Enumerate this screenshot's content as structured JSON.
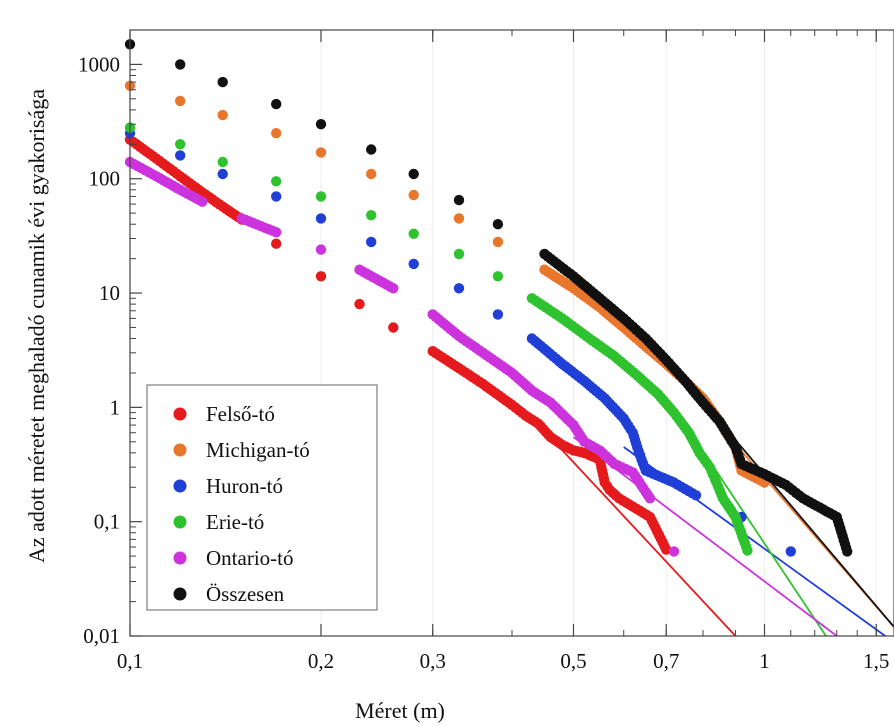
{
  "chart_data": {
    "type": "scatter",
    "xlabel": "Méret (m)",
    "ylabel": "Az adott méretet meghaladó cunamik évi gyakorisága",
    "x_scale": "log",
    "y_scale": "log",
    "xlim": [
      0.1,
      1.6
    ],
    "ylim": [
      0.01,
      2000
    ],
    "x_ticks": [
      {
        "value": 0.1,
        "label": "0,1"
      },
      {
        "value": 0.2,
        "label": "0,2"
      },
      {
        "value": 0.3,
        "label": "0,3"
      },
      {
        "value": 0.5,
        "label": "0,5"
      },
      {
        "value": 0.7,
        "label": "0,7"
      },
      {
        "value": 1,
        "label": "1"
      },
      {
        "value": 1.5,
        "label": "1,5"
      }
    ],
    "y_ticks": [
      {
        "value": 0.01,
        "label": "0,01"
      },
      {
        "value": 0.1,
        "label": "0,1"
      },
      {
        "value": 1,
        "label": "1"
      },
      {
        "value": 10,
        "label": "10"
      },
      {
        "value": 100,
        "label": "100"
      },
      {
        "value": 1000,
        "label": "1000"
      }
    ],
    "legend_position": "bottom-left",
    "series": [
      {
        "name": "Felső-tó",
        "color": "#e41a1c",
        "points": [
          [
            0.1,
            220
          ],
          [
            0.11,
            150
          ],
          [
            0.12,
            105
          ],
          [
            0.13,
            76
          ],
          [
            0.14,
            57
          ],
          [
            0.15,
            44
          ],
          [
            0.17,
            27
          ],
          [
            0.2,
            14
          ],
          [
            0.23,
            8
          ],
          [
            0.26,
            5
          ],
          [
            0.3,
            3.1
          ],
          [
            0.33,
            2.2
          ],
          [
            0.36,
            1.6
          ],
          [
            0.4,
            1.05
          ],
          [
            0.42,
            0.85
          ],
          [
            0.44,
            0.72
          ],
          [
            0.46,
            0.55
          ],
          [
            0.48,
            0.47
          ],
          [
            0.5,
            0.42
          ],
          [
            0.52,
            0.4
          ],
          [
            0.55,
            0.35
          ],
          [
            0.56,
            0.22
          ],
          [
            0.57,
            0.19
          ],
          [
            0.59,
            0.16
          ],
          [
            0.66,
            0.11
          ],
          [
            0.7,
            0.057
          ]
        ],
        "fit_line": [
          [
            0.45,
            0.62
          ],
          [
            0.9,
            0.01
          ]
        ]
      },
      {
        "name": "Michigan-tó",
        "color": "#e8762c",
        "points": [
          [
            0.1,
            650
          ],
          [
            0.12,
            480
          ],
          [
            0.14,
            360
          ],
          [
            0.17,
            250
          ],
          [
            0.2,
            170
          ],
          [
            0.24,
            110
          ],
          [
            0.28,
            72
          ],
          [
            0.33,
            45
          ],
          [
            0.38,
            28
          ],
          [
            0.45,
            16
          ],
          [
            0.5,
            11
          ],
          [
            0.55,
            7.5
          ],
          [
            0.6,
            5
          ],
          [
            0.65,
            3.4
          ],
          [
            0.7,
            2.4
          ],
          [
            0.75,
            1.7
          ],
          [
            0.8,
            1.2
          ],
          [
            0.85,
            0.75
          ],
          [
            0.88,
            0.55
          ],
          [
            0.9,
            0.45
          ],
          [
            0.92,
            0.28
          ],
          [
            1.0,
            0.22
          ]
        ],
        "fit_line": [
          [
            0.88,
            0.55
          ],
          [
            1.6,
            0.012
          ]
        ]
      },
      {
        "name": "Huron-tó",
        "color": "#1f3fd6",
        "points": [
          [
            0.1,
            250
          ],
          [
            0.12,
            160
          ],
          [
            0.14,
            110
          ],
          [
            0.17,
            70
          ],
          [
            0.2,
            45
          ],
          [
            0.24,
            28
          ],
          [
            0.28,
            18
          ],
          [
            0.33,
            11
          ],
          [
            0.38,
            6.5
          ],
          [
            0.43,
            4
          ],
          [
            0.48,
            2.4
          ],
          [
            0.52,
            1.7
          ],
          [
            0.56,
            1.2
          ],
          [
            0.6,
            0.8
          ],
          [
            0.62,
            0.6
          ],
          [
            0.63,
            0.45
          ],
          [
            0.64,
            0.35
          ],
          [
            0.65,
            0.28
          ],
          [
            0.72,
            0.22
          ],
          [
            0.78,
            0.17
          ],
          [
            0.92,
            0.11
          ],
          [
            1.1,
            0.055
          ]
        ],
        "fit_line": [
          [
            0.6,
            0.45
          ],
          [
            1.55,
            0.01
          ]
        ]
      },
      {
        "name": "Erie-tó",
        "color": "#2fc22f",
        "points": [
          [
            0.1,
            280
          ],
          [
            0.12,
            200
          ],
          [
            0.14,
            140
          ],
          [
            0.17,
            95
          ],
          [
            0.2,
            70
          ],
          [
            0.24,
            48
          ],
          [
            0.28,
            33
          ],
          [
            0.33,
            22
          ],
          [
            0.38,
            14
          ],
          [
            0.43,
            9
          ],
          [
            0.48,
            6
          ],
          [
            0.53,
            4
          ],
          [
            0.58,
            2.8
          ],
          [
            0.63,
            1.9
          ],
          [
            0.68,
            1.3
          ],
          [
            0.72,
            0.9
          ],
          [
            0.76,
            0.6
          ],
          [
            0.79,
            0.4
          ],
          [
            0.82,
            0.3
          ],
          [
            0.84,
            0.22
          ],
          [
            0.86,
            0.16
          ],
          [
            0.9,
            0.11
          ],
          [
            0.94,
            0.056
          ]
        ],
        "fit_line": [
          [
            0.72,
            1.0
          ],
          [
            1.25,
            0.01
          ]
        ]
      },
      {
        "name": "Ontario-tó",
        "color": "#cc33dd",
        "points": [
          [
            0.1,
            140
          ],
          [
            0.11,
            105
          ],
          [
            0.12,
            80
          ],
          [
            0.13,
            63
          ],
          [
            0.15,
            45
          ],
          [
            0.17,
            34
          ],
          [
            0.2,
            24
          ],
          [
            0.23,
            16
          ],
          [
            0.26,
            11
          ],
          [
            0.3,
            6.5
          ],
          [
            0.33,
            4.2
          ],
          [
            0.36,
            3
          ],
          [
            0.4,
            2
          ],
          [
            0.43,
            1.4
          ],
          [
            0.46,
            1.1
          ],
          [
            0.5,
            0.7
          ],
          [
            0.52,
            0.5
          ],
          [
            0.55,
            0.42
          ],
          [
            0.58,
            0.32
          ],
          [
            0.62,
            0.27
          ],
          [
            0.66,
            0.16
          ],
          [
            0.72,
            0.055
          ]
        ],
        "fit_line": [
          [
            0.5,
            0.55
          ],
          [
            1.3,
            0.01
          ]
        ]
      },
      {
        "name": "Összesen",
        "color": "#111111",
        "points": [
          [
            0.1,
            1500
          ],
          [
            0.12,
            1000
          ],
          [
            0.14,
            700
          ],
          [
            0.17,
            450
          ],
          [
            0.2,
            300
          ],
          [
            0.24,
            180
          ],
          [
            0.28,
            110
          ],
          [
            0.33,
            65
          ],
          [
            0.38,
            40
          ],
          [
            0.45,
            22
          ],
          [
            0.5,
            14
          ],
          [
            0.55,
            9
          ],
          [
            0.6,
            6
          ],
          [
            0.65,
            4
          ],
          [
            0.7,
            2.6
          ],
          [
            0.75,
            1.7
          ],
          [
            0.8,
            1.1
          ],
          [
            0.85,
            0.75
          ],
          [
            0.88,
            0.55
          ],
          [
            0.9,
            0.45
          ],
          [
            0.92,
            0.32
          ],
          [
            1.0,
            0.26
          ],
          [
            1.08,
            0.21
          ],
          [
            1.15,
            0.16
          ],
          [
            1.3,
            0.11
          ],
          [
            1.35,
            0.055
          ]
        ],
        "fit_line": [
          [
            0.88,
            0.6
          ],
          [
            1.6,
            0.012
          ]
        ]
      }
    ]
  }
}
